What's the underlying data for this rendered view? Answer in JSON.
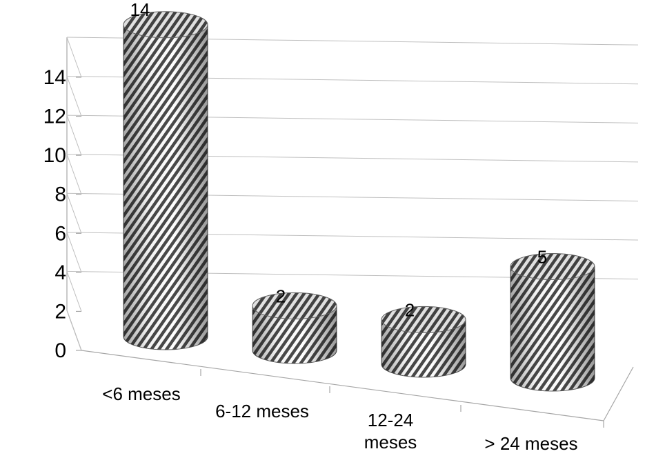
{
  "chart_data": {
    "type": "bar",
    "style": "3d-cylinder",
    "categories": [
      "<6 meses",
      "6-12 meses",
      "12-24 meses",
      "> 24 meses"
    ],
    "category_lines": [
      [
        "<6 meses"
      ],
      [
        "6-12 meses"
      ],
      [
        "12-24",
        "meses"
      ],
      [
        "> 24 meses"
      ]
    ],
    "values": [
      14,
      2,
      2,
      5
    ],
    "data_labels": [
      "14",
      "2",
      "2",
      "5"
    ],
    "ylim": [
      0,
      14
    ],
    "yticks": [
      0,
      2,
      4,
      6,
      8,
      10,
      12,
      14
    ],
    "ytick_labels": [
      "0",
      "2",
      "4",
      "6",
      "8",
      "10",
      "12",
      "14"
    ],
    "grid": true,
    "legend": "none",
    "title": "",
    "xlabel": "",
    "ylabel": "",
    "colors": {
      "bar_stripe_dark": "#4a4a4a",
      "bar_stripe_light": "#ffffff",
      "grid": "#bfbfbf",
      "axis": "#a6a6a6"
    }
  }
}
